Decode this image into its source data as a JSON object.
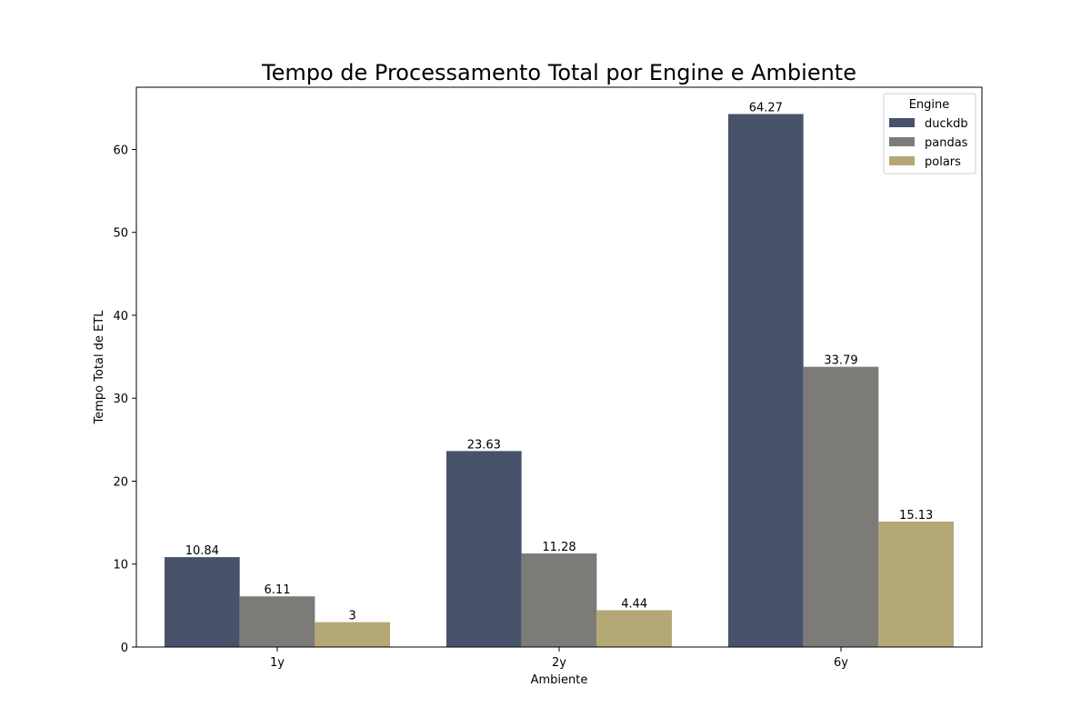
{
  "chart_data": {
    "type": "bar",
    "title": "Tempo de Processamento Total por Engine e Ambiente",
    "xlabel": "Ambiente",
    "ylabel": "Tempo Total de ETL",
    "categories": [
      "1y",
      "2y",
      "6y"
    ],
    "ylim": [
      0,
      67.5
    ],
    "yticks": [
      0,
      10,
      20,
      30,
      40,
      50,
      60
    ],
    "grid": false,
    "legend": {
      "title": "Engine",
      "placement": "top-right"
    },
    "series": [
      {
        "name": "duckdb",
        "color": "#48526a",
        "values": [
          10.84,
          23.63,
          64.27
        ],
        "labels": [
          "10.84",
          "23.63",
          "64.27"
        ]
      },
      {
        "name": "pandas",
        "color": "#7c7b78",
        "values": [
          6.11,
          11.28,
          33.79
        ],
        "labels": [
          "6.11",
          "11.28",
          "33.79"
        ]
      },
      {
        "name": "polars",
        "color": "#b3a876",
        "values": [
          3,
          4.44,
          15.13
        ],
        "labels": [
          "3",
          "4.44",
          "15.13"
        ]
      }
    ]
  }
}
